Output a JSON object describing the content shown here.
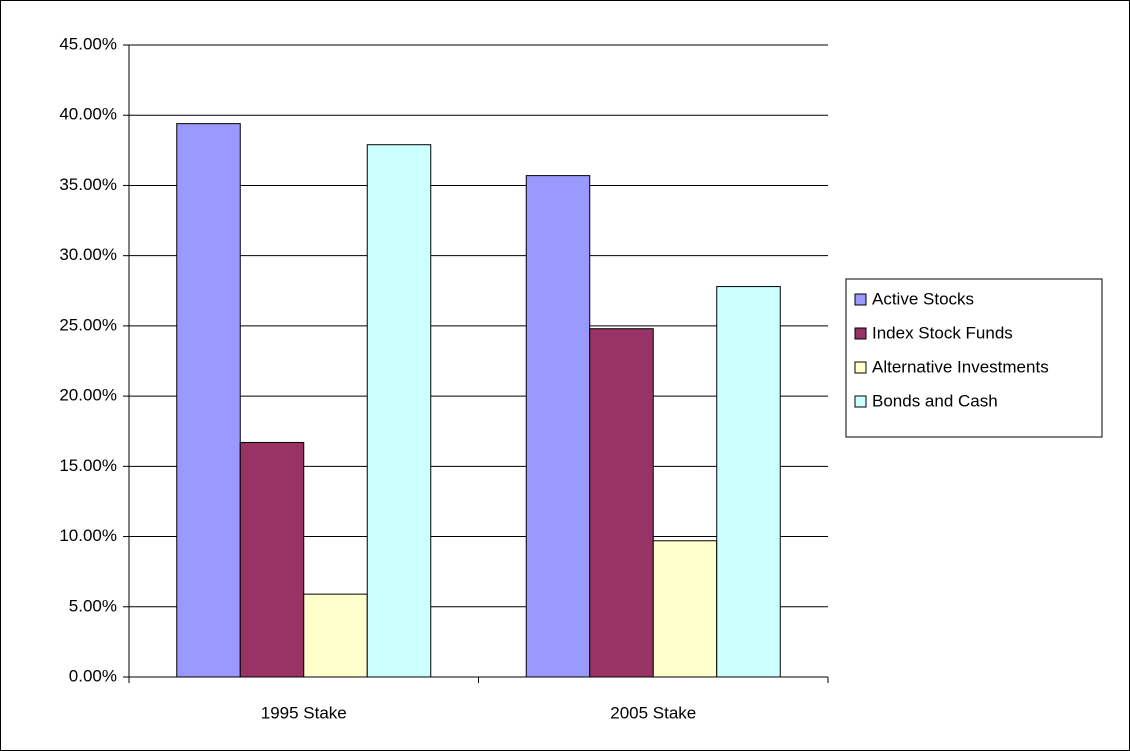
{
  "chart_data": {
    "type": "bar",
    "categories": [
      "1995 Stake",
      "2005 Stake"
    ],
    "series": [
      {
        "name": "Active Stocks",
        "color": "#9999ff",
        "values": [
          39.4,
          35.7
        ]
      },
      {
        "name": "Index Stock Funds",
        "color": "#993366",
        "values": [
          16.7,
          24.8
        ]
      },
      {
        "name": "Alternative Investments",
        "color": "#ffffcc",
        "values": [
          5.9,
          9.7
        ]
      },
      {
        "name": "Bonds and Cash",
        "color": "#ccffff",
        "values": [
          37.9,
          27.8
        ]
      }
    ],
    "ylim": [
      0,
      45
    ],
    "yticks": [
      {
        "value": 0,
        "label": "0.00%"
      },
      {
        "value": 5,
        "label": "5.00%"
      },
      {
        "value": 10,
        "label": "10.00%"
      },
      {
        "value": 15,
        "label": "15.00%"
      },
      {
        "value": 20,
        "label": "20.00%"
      },
      {
        "value": 25,
        "label": "25.00%"
      },
      {
        "value": 30,
        "label": "30.00%"
      },
      {
        "value": 35,
        "label": "35.00%"
      },
      {
        "value": 40,
        "label": "40.00%"
      },
      {
        "value": 45,
        "label": "45.00%"
      }
    ],
    "grid": true,
    "legend": "right"
  }
}
